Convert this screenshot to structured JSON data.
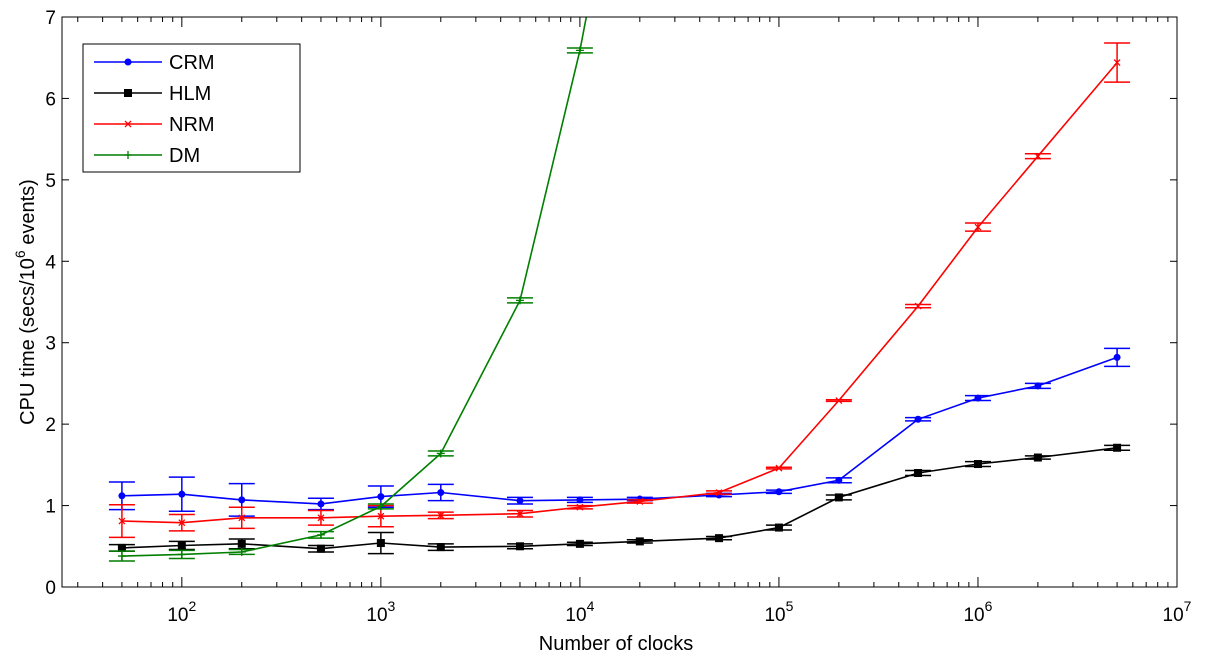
{
  "chart_data": {
    "type": "line",
    "x_scale": "log",
    "xlim": [
      25,
      10000000
    ],
    "ylim": [
      0,
      7
    ],
    "xlabel": "Number of clocks",
    "ylabel_main": "CPU time (secs/10",
    "ylabel_exp": "6",
    "ylabel_tail": " events)",
    "x_ticks": [
      {
        "value": 100,
        "base": "10",
        "exp": "2"
      },
      {
        "value": 1000,
        "base": "10",
        "exp": "3"
      },
      {
        "value": 10000,
        "base": "10",
        "exp": "4"
      },
      {
        "value": 100000,
        "base": "10",
        "exp": "5"
      },
      {
        "value": 1000000,
        "base": "10",
        "exp": "6"
      },
      {
        "value": 10000000,
        "base": "10",
        "exp": "7"
      }
    ],
    "y_ticks": [
      0,
      1,
      2,
      3,
      4,
      5,
      6,
      7
    ],
    "grid": false,
    "legend_position": "top-left",
    "series": [
      {
        "name": "CRM",
        "color": "#0000ff",
        "marker": "dot",
        "x": [
          50,
          100,
          200,
          500,
          1000,
          2000,
          5000,
          10000,
          20000,
          50000,
          100000,
          200000,
          500000,
          1000000,
          2000000,
          5000000
        ],
        "y": [
          1.12,
          1.14,
          1.07,
          1.02,
          1.11,
          1.16,
          1.06,
          1.07,
          1.08,
          1.13,
          1.17,
          1.31,
          2.06,
          2.32,
          2.47,
          2.82
        ],
        "err": [
          0.17,
          0.21,
          0.2,
          0.07,
          0.13,
          0.1,
          0.04,
          0.03,
          0.02,
          0.02,
          0.02,
          0.03,
          0.02,
          0.03,
          0.03,
          0.11
        ]
      },
      {
        "name": "HLM",
        "color": "#000000",
        "marker": "square",
        "x": [
          50,
          100,
          200,
          500,
          1000,
          2000,
          5000,
          10000,
          20000,
          50000,
          100000,
          200000,
          500000,
          1000000,
          2000000,
          5000000
        ],
        "y": [
          0.48,
          0.51,
          0.53,
          0.47,
          0.54,
          0.49,
          0.5,
          0.53,
          0.56,
          0.6,
          0.73,
          1.1,
          1.4,
          1.51,
          1.59,
          1.71
        ],
        "err": [
          0.04,
          0.05,
          0.06,
          0.04,
          0.13,
          0.04,
          0.03,
          0.02,
          0.02,
          0.02,
          0.03,
          0.03,
          0.03,
          0.03,
          0.02,
          0.03
        ]
      },
      {
        "name": "NRM",
        "color": "#ff0000",
        "marker": "x",
        "x": [
          50,
          100,
          200,
          500,
          1000,
          2000,
          5000,
          10000,
          20000,
          50000,
          100000,
          200000,
          500000,
          1000000,
          2000000,
          5000000
        ],
        "y": [
          0.81,
          0.79,
          0.85,
          0.85,
          0.87,
          0.88,
          0.9,
          0.98,
          1.05,
          1.16,
          1.46,
          2.29,
          3.45,
          4.42,
          5.29,
          6.44
        ],
        "err": [
          0.2,
          0.1,
          0.13,
          0.09,
          0.13,
          0.04,
          0.04,
          0.02,
          0.02,
          0.02,
          0.01,
          0.01,
          0.02,
          0.05,
          0.03,
          0.24
        ]
      },
      {
        "name": "DM",
        "color": "#007f00",
        "marker": "plus",
        "x": [
          50,
          100,
          200,
          500,
          1000,
          2000,
          5000,
          10000,
          12000
        ],
        "y": [
          0.38,
          0.4,
          0.43,
          0.64,
          0.99,
          1.64,
          3.52,
          6.59,
          7.6
        ],
        "err": [
          0.06,
          0.05,
          0.03,
          0.04,
          0.03,
          0.03,
          0.03,
          0.03,
          0
        ]
      }
    ]
  }
}
